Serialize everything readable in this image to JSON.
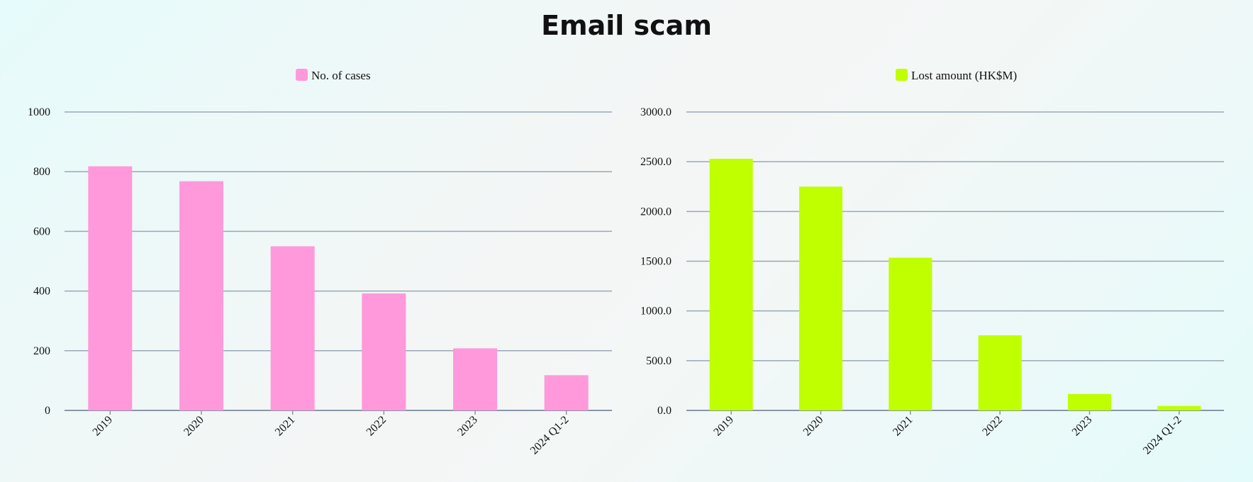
{
  "page": {
    "title": "Email scam"
  },
  "chart_data": [
    {
      "type": "bar",
      "categories": [
        "2019",
        "2020",
        "2021",
        "2022",
        "2023",
        "2024 Q1-2"
      ],
      "series": [
        {
          "name": "No. of cases",
          "values": [
            818,
            768,
            550,
            392,
            208,
            118
          ],
          "color": "#ff99db"
        }
      ],
      "ylim": [
        0,
        1000
      ],
      "yticks": [
        "0",
        "200",
        "400",
        "600",
        "800",
        "1000"
      ],
      "tick_values": [
        0,
        200,
        400,
        600,
        800,
        1000
      ],
      "grid": true,
      "legend_position": "top-center"
    },
    {
      "type": "bar",
      "categories": [
        "2019",
        "2020",
        "2021",
        "2022",
        "2023",
        "2024 Q1-2"
      ],
      "series": [
        {
          "name": "Lost amount (HK$M)",
          "values": [
            2530,
            2250,
            1535,
            755,
            165,
            45
          ],
          "color": "#bfff00"
        }
      ],
      "ylim": [
        0,
        3000
      ],
      "yticks": [
        "0.0",
        "500.0",
        "1000.0",
        "1500.0",
        "2000.0",
        "2500.0",
        "3000.0"
      ],
      "tick_values": [
        0,
        500,
        1000,
        1500,
        2000,
        2500,
        3000
      ],
      "grid": true,
      "legend_position": "top-center"
    }
  ]
}
